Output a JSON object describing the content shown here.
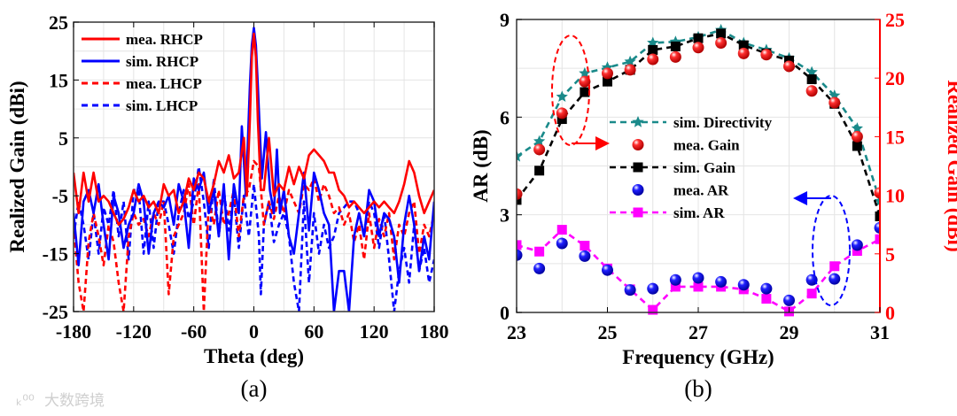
{
  "watermark": "大数跨境",
  "chart_data": [
    {
      "type": "line",
      "caption": "(a)",
      "xlabel": "Theta (deg)",
      "ylabel": "Realized Gain (dBi)",
      "xlim": [
        -180,
        180
      ],
      "ylim": [
        -25,
        25
      ],
      "xticks": [
        "-180",
        "-120",
        "-60",
        "0",
        "60",
        "120",
        "180"
      ],
      "yticks": [
        "25",
        "15",
        "5",
        "-5",
        "-15",
        "-25"
      ],
      "grid": true,
      "legend_position": "top-left",
      "series": [
        {
          "name": "mea. RHCP",
          "color": "#ff0000",
          "dash": false,
          "x": [
            -180,
            -175,
            -170,
            -165,
            -160,
            -155,
            -150,
            -145,
            -140,
            -135,
            -130,
            -125,
            -120,
            -115,
            -110,
            -105,
            -100,
            -95,
            -90,
            -85,
            -80,
            -75,
            -70,
            -65,
            -60,
            -55,
            -50,
            -45,
            -40,
            -35,
            -30,
            -25,
            -20,
            -15,
            -10,
            -7,
            -4,
            -2,
            0,
            2,
            4,
            7,
            10,
            15,
            20,
            25,
            30,
            35,
            40,
            45,
            50,
            55,
            60,
            65,
            70,
            75,
            80,
            85,
            90,
            95,
            100,
            105,
            110,
            115,
            120,
            125,
            130,
            135,
            140,
            145,
            150,
            155,
            160,
            165,
            170,
            175,
            180
          ],
          "y": [
            -1,
            -8,
            -1,
            -6,
            -1,
            -6,
            -5,
            -6,
            -8,
            -10,
            -9,
            -7,
            -4,
            -6,
            -5,
            -7,
            -6,
            -8,
            -3,
            -5,
            -4,
            -8,
            -6,
            -2,
            -4,
            -1,
            -2,
            -6,
            -3,
            1,
            -1,
            2,
            -2,
            -1,
            5,
            -5,
            8,
            19,
            23,
            19,
            8,
            -4,
            -4,
            5,
            -5,
            -3,
            -4,
            0,
            -3,
            0,
            -2,
            2,
            3,
            2,
            1,
            -1,
            -1,
            -4,
            -5,
            -7,
            -6,
            -7,
            -8,
            -7,
            -6,
            -7,
            -6,
            -7,
            -8,
            -6,
            -3,
            1,
            -1,
            -5,
            -8,
            -6,
            -4
          ]
        },
        {
          "name": "sim. RHCP",
          "color": "#0000ff",
          "dash": false,
          "x": [
            -180,
            -175,
            -170,
            -165,
            -160,
            -155,
            -150,
            -145,
            -140,
            -135,
            -130,
            -125,
            -120,
            -115,
            -110,
            -105,
            -100,
            -95,
            -90,
            -85,
            -80,
            -75,
            -70,
            -65,
            -60,
            -55,
            -50,
            -45,
            -40,
            -35,
            -30,
            -25,
            -20,
            -15,
            -12,
            -8,
            -4,
            -2,
            0,
            2,
            4,
            8,
            12,
            16,
            20,
            23,
            26,
            30,
            35,
            40,
            45,
            50,
            55,
            60,
            65,
            70,
            75,
            80,
            85,
            90,
            95,
            100,
            105,
            110,
            115,
            120,
            125,
            130,
            135,
            140,
            145,
            150,
            155,
            160,
            165,
            170,
            175,
            180
          ],
          "y": [
            -8,
            -17,
            -6,
            -4,
            -8,
            -3,
            -10,
            -16,
            -5,
            -8,
            -14,
            -10,
            -8,
            -3,
            -6,
            -15,
            -8,
            -6,
            -7,
            -5,
            -10,
            -3,
            -6,
            -14,
            -2,
            -4,
            -1,
            -8,
            -4,
            -12,
            -3,
            -16,
            -3,
            -8,
            7,
            -5,
            14,
            21,
            24,
            21,
            14,
            -2,
            6,
            -4,
            -8,
            3,
            -8,
            -4,
            -12,
            -15,
            -8,
            -1,
            -11,
            -1,
            -4,
            -8,
            -10,
            -25,
            -18,
            -18,
            -25,
            -12,
            -8,
            -12,
            -4,
            -6,
            -12,
            -8,
            -9,
            -12,
            -20,
            -10,
            -5,
            -10,
            -18,
            -12,
            -16,
            -6
          ]
        },
        {
          "name": "mea. LHCP",
          "color": "#ff0000",
          "dash": true,
          "x": [
            -180,
            -175,
            -170,
            -165,
            -160,
            -155,
            -150,
            -145,
            -140,
            -135,
            -130,
            -125,
            -120,
            -115,
            -110,
            -105,
            -100,
            -95,
            -90,
            -85,
            -80,
            -75,
            -70,
            -65,
            -60,
            -55,
            -50,
            -45,
            -40,
            -35,
            -30,
            -25,
            -20,
            -15,
            -10,
            -5,
            0,
            5,
            10,
            15,
            20,
            25,
            30,
            35,
            40,
            45,
            50,
            55,
            60,
            65,
            70,
            75,
            80,
            85,
            90,
            95,
            100,
            105,
            110,
            115,
            120,
            125,
            130,
            135,
            140,
            145,
            150,
            155,
            160,
            165,
            170,
            175,
            180
          ],
          "y": [
            -10,
            -20,
            -25,
            -13,
            -8,
            -12,
            -17,
            -10,
            -13,
            -20,
            -25,
            -12,
            -8,
            -10,
            -9,
            -12,
            -8,
            -10,
            -6,
            -22,
            -12,
            -10,
            -8,
            -3,
            -10,
            -3,
            -25,
            -6,
            -10,
            -4,
            -10,
            -8,
            -4,
            -12,
            -5,
            -4,
            1,
            0,
            -10,
            -6,
            -9,
            -5,
            -8,
            -4,
            -6,
            -8,
            -3,
            -4,
            -2,
            -6,
            -3,
            -5,
            -8,
            -7,
            -10,
            -8,
            -13,
            -10,
            -16,
            -8,
            -14,
            -9,
            -12,
            -8,
            -16,
            -10,
            -12,
            -8,
            -6,
            -15,
            -10,
            -12,
            -8
          ]
        },
        {
          "name": "sim. LHCP",
          "color": "#0000ff",
          "dash": true,
          "x": [
            -180,
            -175,
            -170,
            -165,
            -160,
            -155,
            -150,
            -145,
            -140,
            -135,
            -130,
            -125,
            -120,
            -115,
            -110,
            -105,
            -100,
            -95,
            -90,
            -85,
            -80,
            -75,
            -70,
            -65,
            -60,
            -55,
            -50,
            -45,
            -40,
            -35,
            -30,
            -25,
            -20,
            -15,
            -10,
            -5,
            0,
            5,
            7,
            10,
            15,
            20,
            25,
            30,
            35,
            40,
            45,
            50,
            55,
            60,
            65,
            70,
            75,
            80,
            85,
            90,
            95,
            100,
            105,
            110,
            115,
            120,
            125,
            130,
            135,
            140,
            145,
            150,
            155,
            160,
            165,
            170,
            175,
            180
          ],
          "y": [
            -12,
            -6,
            -10,
            -16,
            -8,
            -15,
            -7,
            -10,
            -4,
            -12,
            -6,
            -16,
            -4,
            -4,
            -15,
            -6,
            -14,
            -6,
            -6,
            -10,
            -15,
            -8,
            -4,
            -9,
            -6,
            0,
            -6,
            -14,
            -2,
            -12,
            -4,
            -11,
            -5,
            -14,
            -5,
            -12,
            -3,
            -12,
            -22,
            -10,
            -6,
            -13,
            -10,
            -8,
            -12,
            -20,
            -25,
            -6,
            -20,
            -8,
            -15,
            -10,
            -14,
            -12,
            -8,
            -7,
            -6,
            -6,
            -8,
            -12,
            -6,
            -8,
            -14,
            -8,
            -16,
            -25,
            -18,
            -14,
            -20,
            -10,
            -18,
            -14,
            -20,
            -16
          ]
        }
      ]
    },
    {
      "type": "line",
      "caption": "(b)",
      "xlabel": "Frequency (GHz)",
      "ylabel": "AR (dB)",
      "ylabel_right": "Realized Gain (dBi)",
      "xlim": [
        23,
        31
      ],
      "ylim": [
        0,
        9
      ],
      "ylim_right": [
        0,
        25
      ],
      "xticks": [
        "23",
        "25",
        "27",
        "29",
        "31"
      ],
      "yticks": [
        "0",
        "3",
        "6",
        "9"
      ],
      "yticks_right": [
        "0",
        "5",
        "10",
        "15",
        "20",
        "25"
      ],
      "grid": true,
      "legend_position": "center",
      "right_axis_color": "#ff0000",
      "x": [
        23,
        23.5,
        24,
        24.5,
        25,
        25.5,
        26,
        26.5,
        27,
        27.5,
        28,
        28.5,
        29,
        29.5,
        30,
        30.5,
        31
      ],
      "series": [
        {
          "name": "sim. Directivity",
          "axis": "right",
          "color": "#1a8a8a",
          "marker": "star",
          "dash": true,
          "values": [
            13.3,
            14.6,
            18.4,
            20.4,
            20.9,
            21.4,
            23.0,
            23.1,
            23.5,
            24.1,
            23.0,
            22.4,
            21.7,
            20.5,
            18.5,
            15.7,
            9.5
          ]
        },
        {
          "name": "mea. Gain",
          "axis": "right",
          "color": "#ff0000",
          "marker": "sphere",
          "dash": false,
          "values": [
            10.1,
            13.9,
            17.0,
            19.7,
            20.4,
            20.7,
            21.6,
            21.8,
            22.6,
            23.0,
            22.1,
            22.0,
            21.0,
            18.9,
            17.9,
            15.0,
            10.2
          ]
        },
        {
          "name": "sim. Gain",
          "axis": "right",
          "color": "#000000",
          "marker": "square",
          "dash": true,
          "values": [
            9.6,
            12.1,
            16.5,
            18.8,
            19.7,
            20.7,
            22.4,
            22.7,
            23.4,
            23.8,
            22.8,
            22.1,
            21.5,
            19.9,
            17.8,
            14.2,
            8.2
          ]
        },
        {
          "name": "mea. AR",
          "axis": "left",
          "color": "#0000ff",
          "marker": "sphere",
          "dash": false,
          "values": [
            1.76,
            1.35,
            2.12,
            1.73,
            1.3,
            0.69,
            0.73,
            1.0,
            1.06,
            0.94,
            0.85,
            0.73,
            0.37,
            1.0,
            1.03,
            2.07,
            2.6
          ]
        },
        {
          "name": "sim. AR",
          "axis": "left",
          "color": "#ff00ff",
          "marker": "square",
          "dash": true,
          "values": [
            2.07,
            1.87,
            2.54,
            2.05,
            1.35,
            0.71,
            0.08,
            0.79,
            0.79,
            0.79,
            0.71,
            0.42,
            0.03,
            0.58,
            1.42,
            1.89,
            2.25
          ]
        }
      ]
    }
  ]
}
